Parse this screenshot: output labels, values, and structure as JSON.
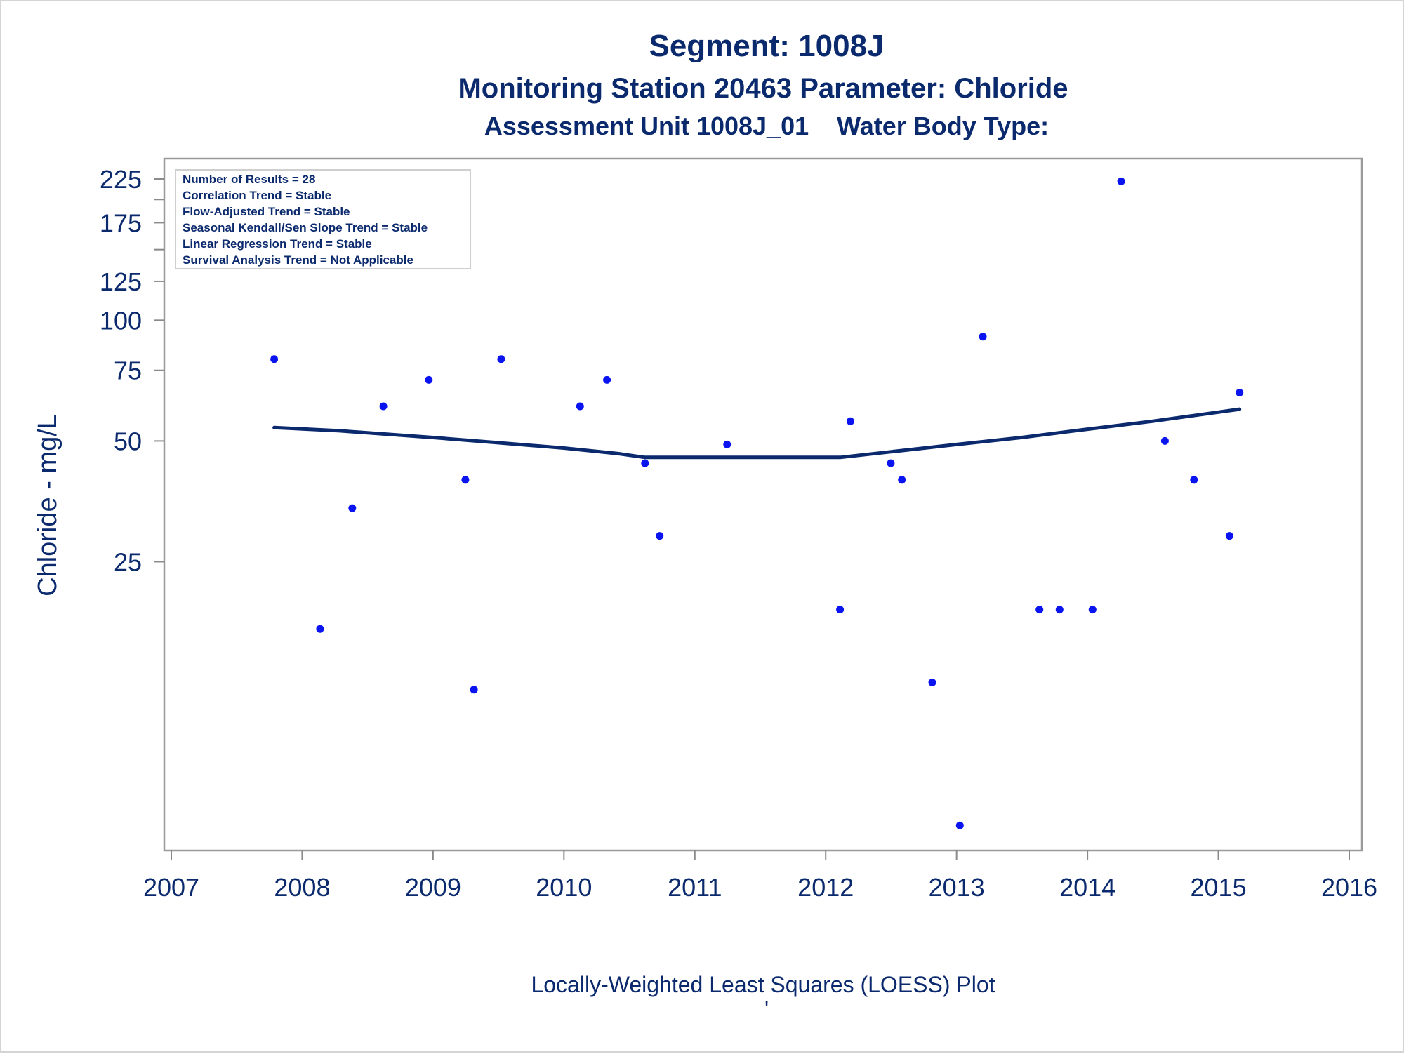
{
  "chart_data": {
    "type": "scatter",
    "title": "Segment: 1008J",
    "subtitle": "Monitoring Station 20463 Parameter: Chloride",
    "subtitle2": "Assessment Unit 1008J_01    Water Body Type:",
    "ylabel": "Chloride - mg/L",
    "xlabel": "",
    "footnote": "Locally-Weighted Least Squares (LOESS) Plot",
    "footnote2": "'",
    "y_scale": "log",
    "xlim": [
      "2007-01-01",
      "2016-01-01"
    ],
    "ylim": [
      5,
      240
    ],
    "x_ticks": [
      "2007",
      "2008",
      "2009",
      "2010",
      "2011",
      "2012",
      "2013",
      "2014",
      "2015",
      "2016"
    ],
    "y_ticks": [
      25,
      50,
      75,
      100,
      125,
      175,
      225
    ],
    "y_minor_ticks": [
      150,
      200
    ],
    "grid": false,
    "stats_box": {
      "placement": "top-left",
      "lines": [
        "Number of Results = 28",
        "Correlation Trend = Stable",
        "Flow-Adjusted Trend = Stable",
        "Seasonal Kendall/Sen Slope Trend = Stable",
        "Linear Regression Trend = Stable",
        "Survival Analysis Trend = Not Applicable"
      ]
    },
    "series": [
      {
        "type": "scatter",
        "color": "#0a14f0",
        "x": [
          "2007-10-15",
          "2008-02-20",
          "2008-05-20",
          "2008-08-15",
          "2008-12-20",
          "2009-04-01",
          "2009-04-25",
          "2009-07-10",
          "2010-02-15",
          "2010-05-01",
          "2010-08-15",
          "2010-09-25",
          "2011-04-01",
          "2012-02-10",
          "2012-03-10",
          "2012-07-01",
          "2012-08-01",
          "2012-10-25",
          "2013-01-10",
          "2013-03-15",
          "2013-08-20",
          "2013-10-15",
          "2014-01-15",
          "2014-04-05",
          "2014-08-05",
          "2014-10-25",
          "2015-02-01",
          "2015-03-01"
        ],
        "values": [
          80,
          17,
          34,
          61,
          71,
          40,
          12,
          80,
          61,
          71,
          44,
          29,
          49,
          19,
          56,
          44,
          40,
          12.5,
          5.5,
          91,
          19,
          19,
          19,
          222,
          50,
          40,
          29,
          66
        ]
      },
      {
        "type": "line",
        "color": "#0b2a6e",
        "x": [
          "2007-10-15",
          "2008-04-15",
          "2009-01-01",
          "2009-07-01",
          "2010-01-01",
          "2010-06-01",
          "2010-08-15",
          "2011-06-01",
          "2012-02-10",
          "2012-07-01",
          "2013-01-01",
          "2013-07-01",
          "2014-01-01",
          "2014-07-01",
          "2015-01-01",
          "2015-03-01"
        ],
        "values": [
          54,
          53,
          51,
          49.5,
          48,
          46.5,
          45.5,
          45.5,
          45.5,
          47,
          49,
          51,
          53.5,
          56,
          59,
          60
        ]
      }
    ]
  }
}
